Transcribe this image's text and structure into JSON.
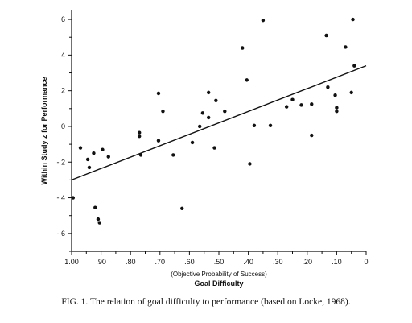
{
  "caption": "FIG. 1. The relation of goal difficulty to performance (based on Locke, 1968).",
  "chart_data": {
    "type": "scatter",
    "xlabel": "Goal Difficulty",
    "xlabel_sub": "(Objective Probability of Success)",
    "ylabel": "Within Study z for Performance",
    "xlim": [
      1.0,
      0.0
    ],
    "ylim": [
      -7,
      6.5
    ],
    "x_reversed": true,
    "x_ticks": [
      1.0,
      0.9,
      0.8,
      0.7,
      0.6,
      0.5,
      0.4,
      0.3,
      0.2,
      0.1,
      0.0
    ],
    "x_tick_labels": [
      "1.00",
      ".90",
      ".80",
      ".70",
      ".60",
      ".50",
      ".40",
      ".30",
      ".20",
      ".10",
      "0"
    ],
    "y_ticks": [
      6,
      4,
      2,
      0,
      -2,
      -4,
      -6
    ],
    "y_tick_labels": [
      "6",
      "4",
      "2",
      "0",
      "- 2",
      "- 4",
      "- 6"
    ],
    "grid": false,
    "points": [
      {
        "x": 0.995,
        "y": -4.0
      },
      {
        "x": 0.97,
        "y": -1.2
      },
      {
        "x": 0.945,
        "y": -1.85
      },
      {
        "x": 0.94,
        "y": -2.3
      },
      {
        "x": 0.925,
        "y": -1.5
      },
      {
        "x": 0.92,
        "y": -4.55
      },
      {
        "x": 0.91,
        "y": -5.2
      },
      {
        "x": 0.905,
        "y": -5.4
      },
      {
        "x": 0.895,
        "y": -1.3
      },
      {
        "x": 0.875,
        "y": -1.7
      },
      {
        "x": 0.77,
        "y": -0.35
      },
      {
        "x": 0.77,
        "y": -0.55
      },
      {
        "x": 0.765,
        "y": -1.6
      },
      {
        "x": 0.705,
        "y": 1.85
      },
      {
        "x": 0.705,
        "y": -0.8
      },
      {
        "x": 0.69,
        "y": 0.85
      },
      {
        "x": 0.655,
        "y": -1.6
      },
      {
        "x": 0.625,
        "y": -4.6
      },
      {
        "x": 0.59,
        "y": -0.9
      },
      {
        "x": 0.565,
        "y": 0.0
      },
      {
        "x": 0.555,
        "y": 0.75
      },
      {
        "x": 0.535,
        "y": 1.9
      },
      {
        "x": 0.535,
        "y": 0.5
      },
      {
        "x": 0.515,
        "y": -1.2
      },
      {
        "x": 0.51,
        "y": 1.45
      },
      {
        "x": 0.48,
        "y": 0.85
      },
      {
        "x": 0.42,
        "y": 4.4
      },
      {
        "x": 0.405,
        "y": 2.6
      },
      {
        "x": 0.395,
        "y": -2.1
      },
      {
        "x": 0.38,
        "y": 0.05
      },
      {
        "x": 0.35,
        "y": 5.95
      },
      {
        "x": 0.325,
        "y": 0.05
      },
      {
        "x": 0.27,
        "y": 1.1
      },
      {
        "x": 0.25,
        "y": 1.5
      },
      {
        "x": 0.22,
        "y": 1.2
      },
      {
        "x": 0.185,
        "y": 1.25
      },
      {
        "x": 0.185,
        "y": -0.5
      },
      {
        "x": 0.135,
        "y": 5.1
      },
      {
        "x": 0.13,
        "y": 2.2
      },
      {
        "x": 0.105,
        "y": 1.75
      },
      {
        "x": 0.1,
        "y": 1.05
      },
      {
        "x": 0.1,
        "y": 0.85
      },
      {
        "x": 0.07,
        "y": 4.45
      },
      {
        "x": 0.05,
        "y": 1.9
      },
      {
        "x": 0.045,
        "y": 6.0
      },
      {
        "x": 0.04,
        "y": 3.4
      }
    ],
    "regression_line": {
      "x": [
        1.0,
        0.0
      ],
      "y": [
        -3.0,
        3.4
      ]
    }
  }
}
